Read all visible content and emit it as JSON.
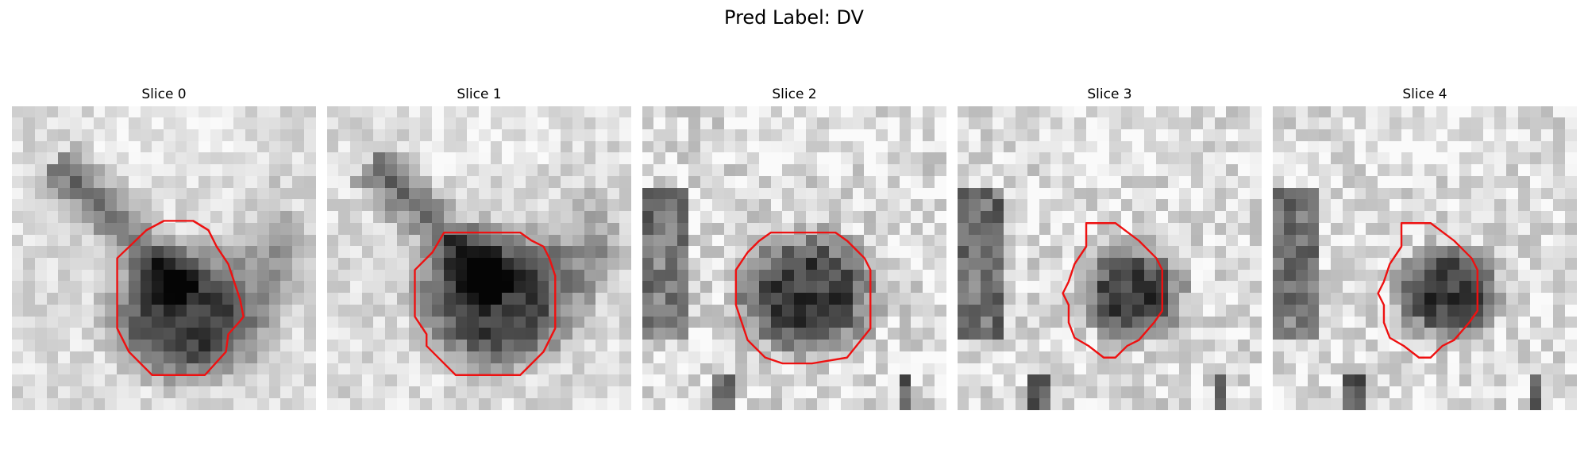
{
  "figure": {
    "title": "Pred Label: DV"
  },
  "panels": [
    {
      "title": "Slice 0",
      "contour_color": "#ee1111"
    },
    {
      "title": "Slice 1",
      "contour_color": "#ee1111"
    },
    {
      "title": "Slice 2",
      "contour_color": "#ee1111"
    },
    {
      "title": "Slice 3",
      "contour_color": "#ee1111"
    },
    {
      "title": "Slice 4",
      "contour_color": "#ee1111"
    }
  ]
}
